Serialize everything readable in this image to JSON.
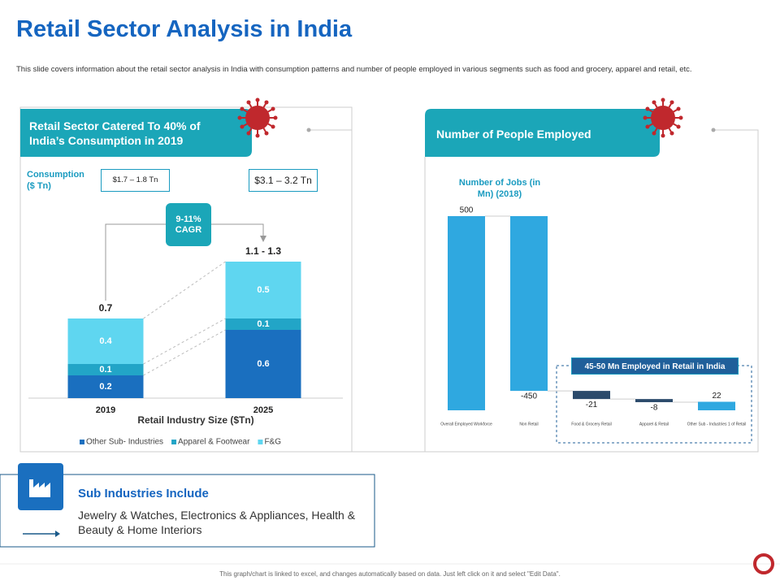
{
  "title": "Retail Sector Analysis in India",
  "description": "This slide covers information about the retail sector analysis in India with consumption patterns and number of people employed in various segments such as food and grocery, apparel and retail, etc.",
  "sub_industries": {
    "heading": "Sub Industries Include",
    "text": "Jewelry & Watches, Electronics & Appliances, Health & Beauty & Home Interiors"
  },
  "footer": "This graph/chart is linked to excel, and changes automatically based on data. Just left click on it and select \"Edit Data\".",
  "chart_data": [
    {
      "type": "stacked_bar",
      "panel_title": "Retail Sector Catered To 40% of India’s Consumption in 2019",
      "ylabel": "Consumption ($ Tn)",
      "xlabel": "Retail Industry  Size ($Tn)",
      "annotations": [
        "$1.7 – 1.8 Tn",
        "$3.1 – 3.2 Tn",
        "9-11% CAGR"
      ],
      "total_labels": [
        "0.7",
        "1.1 - 1.3"
      ],
      "categories": [
        "2019",
        "2025"
      ],
      "series": [
        {
          "name": "Other Sub- Industries",
          "color": "#1a6fbf",
          "values": [
            0.2,
            0.6
          ]
        },
        {
          "name": "Apparel & Footwear",
          "color": "#22a5c7",
          "values": [
            0.1,
            0.1
          ]
        },
        {
          "name": "F&G",
          "color": "#5fd6f0",
          "values": [
            0.4,
            0.5
          ]
        }
      ],
      "legend": "bottom"
    },
    {
      "type": "waterfall",
      "panel_title": "Number of People Employed",
      "title": "Number of Jobs (in Mn) (2018)",
      "annotations": [
        "45-50 Mn Employed in Retail in India"
      ],
      "categories": [
        "Overall Employed Workforce",
        "Non Retail",
        "Food & Grocery Retail",
        "Apparel & Retail",
        "Other Sub - Industries 1 of Retail"
      ],
      "values": [
        500,
        -450,
        -21,
        -8,
        22
      ],
      "colors": [
        "#2fa8e0",
        "#2fa8e0",
        "#2b4a6b",
        "#2b4a6b",
        "#2fa8e0"
      ]
    }
  ]
}
